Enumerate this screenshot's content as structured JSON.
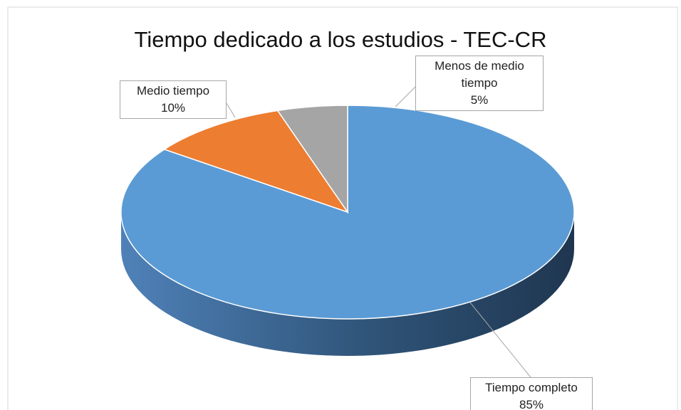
{
  "chart_data": {
    "type": "pie",
    "title": "Tiempo dedicado a los estudios - TEC-CR",
    "categories": [
      "Tiempo completo",
      "Medio tiempo",
      "Menos de medio tiempo"
    ],
    "values": [
      85,
      10,
      5
    ],
    "value_labels": [
      "85%",
      "10%",
      "5%"
    ],
    "colors": [
      "#5b9bd5",
      "#ed7d31",
      "#a5a5a5"
    ]
  }
}
